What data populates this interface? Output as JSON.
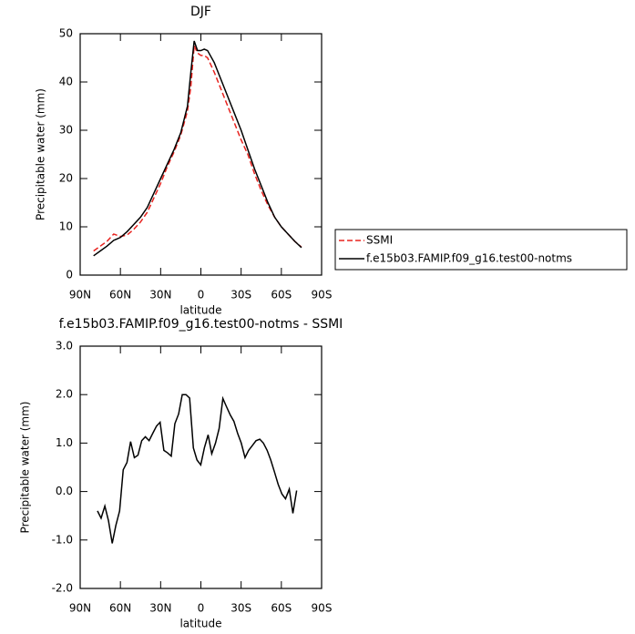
{
  "chart_data": [
    {
      "type": "line",
      "title": "DJF",
      "xlabel": "latitude",
      "ylabel": "Precipitable water (mm)",
      "x": [
        80,
        75,
        70,
        65,
        60,
        55,
        50,
        45,
        40,
        35,
        30,
        25,
        20,
        15,
        10,
        7.5,
        5,
        2.5,
        0,
        -2.5,
        -5,
        -10,
        -15,
        -20,
        -25,
        -30,
        -35,
        -40,
        -45,
        -50,
        -55,
        -60,
        -65,
        -70,
        -75
      ],
      "series": [
        {
          "name": "SSMI",
          "color": "#e8231f",
          "style": "dashed",
          "values": [
            5.0,
            6.0,
            7.0,
            8.5,
            8.0,
            8.3,
            9.5,
            11,
            13,
            16,
            19,
            22.5,
            25.5,
            29,
            34,
            39,
            47.5,
            46,
            45.5,
            45.5,
            45,
            42,
            38.5,
            35,
            31.5,
            28,
            25,
            21,
            17.5,
            14.5,
            12,
            10,
            8.5,
            7,
            5.8
          ]
        },
        {
          "name": "f.e15b03.FAMIP.f09_g16.test00-notms",
          "color": "#000000",
          "style": "solid",
          "values": [
            4.0,
            5.0,
            6.0,
            7.2,
            7.8,
            9.0,
            10.5,
            12,
            14,
            17,
            20,
            23,
            26,
            29.5,
            35,
            42,
            48.5,
            46.5,
            46.5,
            46.8,
            46.5,
            44,
            40.5,
            37,
            33.5,
            30,
            26,
            22,
            18.5,
            15,
            12,
            10,
            8.5,
            7,
            5.7
          ]
        }
      ],
      "xlim": [
        90,
        -90
      ],
      "xticks": [
        {
          "value": 90,
          "label": "90N"
        },
        {
          "value": 60,
          "label": "60N"
        },
        {
          "value": 30,
          "label": "30N"
        },
        0,
        {
          "value": -30,
          "label": "30S"
        },
        {
          "value": -60,
          "label": "60S"
        },
        {
          "value": -90,
          "label": "90S"
        }
      ],
      "ylim": [
        0,
        50
      ],
      "yticks": [
        0,
        10,
        20,
        30,
        40,
        50
      ],
      "legend": "right"
    },
    {
      "type": "line",
      "title": "f.e15b03.FAMIP.f09_g16.test00-notms - SSMI",
      "xlabel": "latitude",
      "ylabel": "Precipitable water (mm)",
      "x": [
        77.1,
        74.4,
        71.6,
        68.9,
        66.1,
        63.4,
        60.6,
        57.9,
        55.1,
        52.4,
        49.6,
        46.9,
        44.1,
        41.4,
        38.6,
        35.9,
        33.1,
        30.4,
        27.6,
        24.9,
        22.1,
        19.4,
        16.6,
        13.9,
        11.1,
        8.4,
        5.6,
        2.9,
        0.1,
        -2.6,
        -5.4,
        -8.1,
        -10.9,
        -13.6,
        -16.4,
        -19.1,
        -21.9,
        -24.6,
        -27.4,
        -30.1,
        -32.9,
        -35.6,
        -38.4,
        -41.1,
        -43.9,
        -46.6,
        -49.4,
        -52.1,
        -54.9,
        -57.6,
        -60.4,
        -63.1,
        -65.9,
        -68.6,
        -71.4
      ],
      "series": [
        {
          "color": "#000000",
          "style": "solid",
          "values": [
            -0.4,
            -0.55,
            -0.3,
            -0.6,
            -1.07,
            -0.7,
            -0.4,
            0.45,
            0.6,
            1.03,
            0.7,
            0.75,
            1.05,
            1.13,
            1.05,
            1.2,
            1.35,
            1.43,
            0.85,
            0.8,
            0.73,
            1.4,
            1.6,
            2.0,
            2.0,
            1.93,
            0.9,
            0.65,
            0.55,
            0.9,
            1.17,
            0.78,
            1.0,
            1.3,
            1.92,
            1.75,
            1.58,
            1.45,
            1.2,
            1.0,
            0.7,
            0.85,
            0.95,
            1.05,
            1.08,
            1.0,
            0.85,
            0.65,
            0.4,
            0.15,
            -0.05,
            -0.15,
            0.05,
            -0.45,
            0.02
          ]
        }
      ],
      "xlim": [
        90,
        -90
      ],
      "xticks": [
        {
          "value": 90,
          "label": "90N"
        },
        {
          "value": 60,
          "label": "60N"
        },
        {
          "value": 30,
          "label": "30N"
        },
        0,
        {
          "value": -30,
          "label": "30S"
        },
        {
          "value": -60,
          "label": "60S"
        },
        {
          "value": -90,
          "label": "90S"
        }
      ],
      "ylim": [
        -2,
        3
      ],
      "yticks": [
        {
          "value": -2,
          "label": "-2.0"
        },
        {
          "value": -1,
          "label": "-1.0"
        },
        {
          "value": 0,
          "label": "0.0"
        },
        {
          "value": 1,
          "label": "1.0"
        },
        {
          "value": 2,
          "label": "2.0"
        },
        {
          "value": 3,
          "label": "3.0"
        }
      ]
    }
  ]
}
